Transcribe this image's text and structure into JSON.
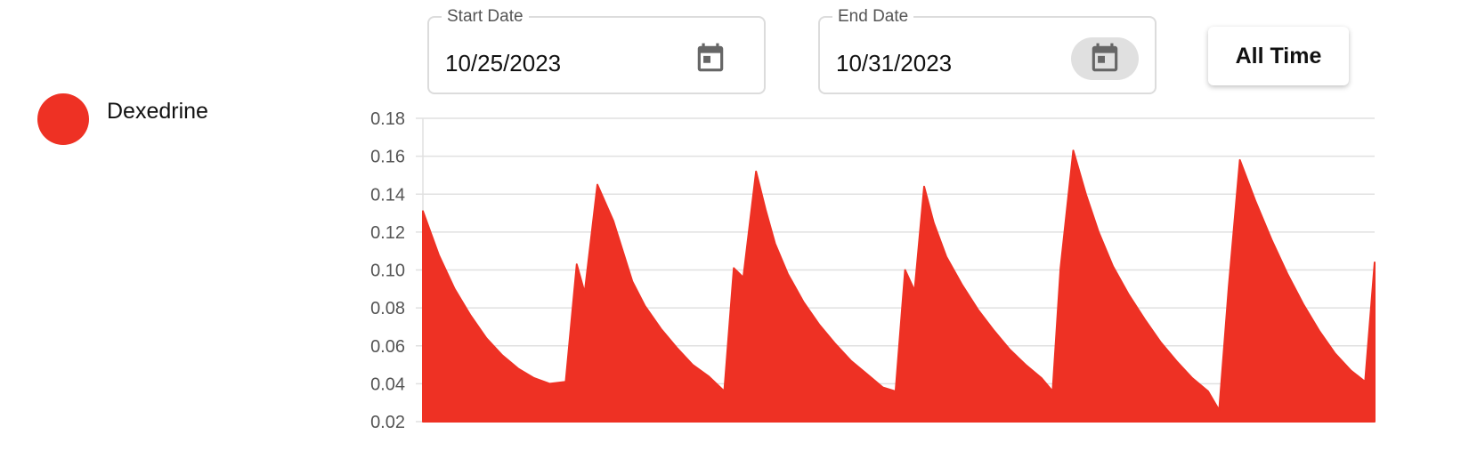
{
  "legend": {
    "label": "Dexedrine",
    "color": "#ee3124"
  },
  "start_date": {
    "label": "Start Date",
    "value": "10/25/2023",
    "icon": "calendar-icon"
  },
  "end_date": {
    "label": "End Date",
    "value": "10/31/2023",
    "icon": "calendar-icon"
  },
  "all_time_button": {
    "label": "All Time"
  },
  "chart_data": {
    "type": "area",
    "title": "",
    "xlabel": "",
    "ylabel": "",
    "ylim": [
      0.02,
      0.18
    ],
    "yticks": [
      "0.18",
      "0.16",
      "0.14",
      "0.12",
      "0.10",
      "0.08",
      "0.06",
      "0.04",
      "0.02"
    ],
    "grid": true,
    "x_range": [
      "10/25/2023",
      "10/31/2023"
    ],
    "series": [
      {
        "name": "Dexedrine",
        "color": "#ee3124",
        "x": [
          0.0,
          0.1,
          0.2,
          0.3,
          0.4,
          0.5,
          0.6,
          0.7,
          0.8,
          0.9,
          0.97,
          1.02,
          1.1,
          1.2,
          1.26,
          1.32,
          1.4,
          1.5,
          1.6,
          1.7,
          1.8,
          1.9,
          1.96,
          2.02,
          2.1,
          2.16,
          2.22,
          2.3,
          2.4,
          2.5,
          2.6,
          2.7,
          2.8,
          2.9,
          2.98,
          3.04,
          3.1,
          3.16,
          3.22,
          3.3,
          3.4,
          3.5,
          3.6,
          3.7,
          3.8,
          3.9,
          3.97,
          4.02,
          4.1,
          4.18,
          4.26,
          4.35,
          4.45,
          4.55,
          4.65,
          4.75,
          4.85,
          4.95,
          5.02,
          5.08,
          5.15,
          5.25,
          5.35,
          5.45,
          5.55,
          5.65,
          5.75,
          5.85,
          5.94,
          6.0
        ],
        "values": [
          0.131,
          0.108,
          0.09,
          0.076,
          0.064,
          0.055,
          0.048,
          0.043,
          0.04,
          0.041,
          0.103,
          0.088,
          0.145,
          0.126,
          0.11,
          0.094,
          0.081,
          0.069,
          0.059,
          0.05,
          0.044,
          0.036,
          0.101,
          0.096,
          0.152,
          0.132,
          0.114,
          0.098,
          0.083,
          0.071,
          0.061,
          0.052,
          0.045,
          0.038,
          0.036,
          0.1,
          0.089,
          0.144,
          0.125,
          0.107,
          0.092,
          0.079,
          0.068,
          0.058,
          0.05,
          0.043,
          0.036,
          0.101,
          0.163,
          0.14,
          0.12,
          0.102,
          0.087,
          0.074,
          0.062,
          0.052,
          0.043,
          0.036,
          0.026,
          0.091,
          0.158,
          0.136,
          0.116,
          0.098,
          0.082,
          0.068,
          0.056,
          0.047,
          0.041,
          0.104
        ]
      }
    ]
  }
}
